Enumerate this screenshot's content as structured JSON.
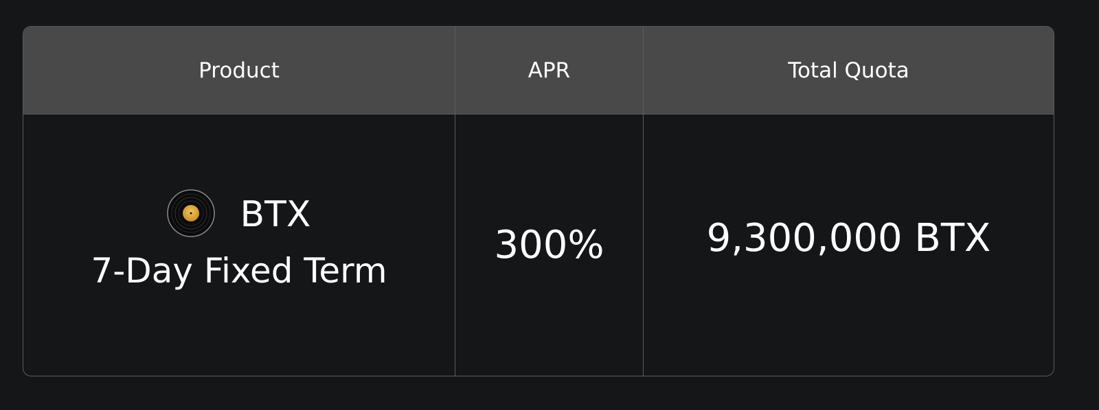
{
  "table": {
    "headers": [
      "Product",
      "APR",
      "Total Quota"
    ],
    "row": {
      "coin_icon": "vinyl-record-icon",
      "coin": "BTX",
      "term": "7-Day Fixed Term",
      "apr": "300%",
      "total_quota": "9,300,000 BTX"
    }
  },
  "colors": {
    "background": "#151618",
    "header": "#494949",
    "border": "#5c5c5e",
    "icon_label": "#e3b048"
  }
}
